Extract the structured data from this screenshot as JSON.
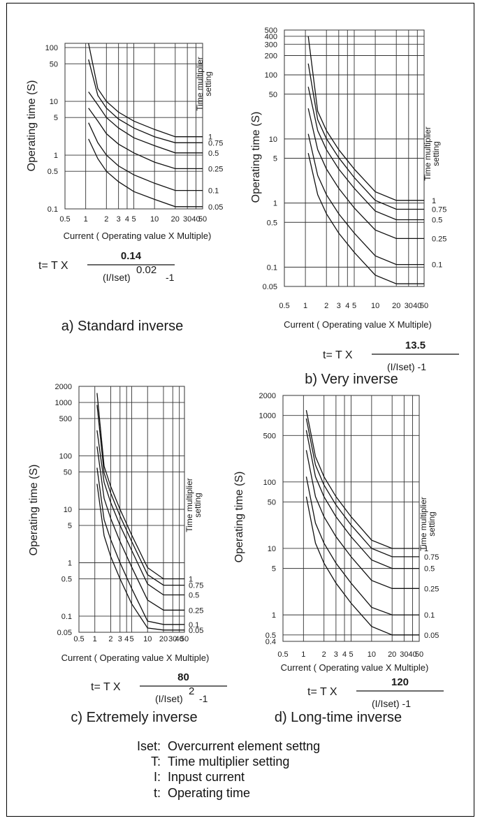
{
  "chart_data": [
    {
      "type": "line",
      "title": "a) Standard inverse",
      "xlabel": "Current ( Operating value X Multiple)",
      "ylabel": "Operating time (S)",
      "right_label": [
        "Time multiplier",
        "setting"
      ],
      "xlim": [
        0.5,
        50
      ],
      "ylim": [
        0.1,
        120
      ],
      "x_ticks": [
        0.5,
        1,
        2,
        3,
        4,
        5,
        10,
        20,
        30,
        40,
        50
      ],
      "x_tick_labels": [
        "0.5",
        "1",
        "2",
        "3",
        "4",
        "5",
        "10",
        "20",
        "30",
        "40",
        "50"
      ],
      "y_ticks": [
        0.1,
        0.5,
        1,
        5,
        10,
        50,
        100
      ],
      "y_tick_labels": [
        "0.1",
        "0.5",
        "1",
        "5",
        "10",
        "50",
        "100"
      ],
      "formula": {
        "prefix": "t= T X",
        "numerator": "0.14",
        "denominator": "(I/Iset)",
        "exponent": "0.02",
        "suffix": "-1"
      },
      "series": [
        {
          "name": "1",
          "x": [
            1.1,
            1.5,
            2,
            3,
            5,
            10,
            20,
            50
          ],
          "y": [
            120,
            17.2,
            10.0,
            6.3,
            4.3,
            3.0,
            2.2,
            2.2
          ]
        },
        {
          "name": "0.75",
          "x": [
            1.1,
            1.5,
            2,
            3,
            5,
            10,
            20,
            50
          ],
          "y": [
            60,
            12.9,
            7.5,
            4.7,
            3.2,
            2.2,
            1.7,
            1.7
          ]
        },
        {
          "name": "0.5",
          "x": [
            1.1,
            1.5,
            2,
            3,
            5,
            10,
            20,
            50
          ],
          "y": [
            15,
            8.6,
            5.0,
            3.2,
            2.1,
            1.5,
            1.1,
            1.1
          ]
        },
        {
          "name": "0.25",
          "x": [
            1.1,
            1.5,
            2,
            3,
            5,
            10,
            20,
            50
          ],
          "y": [
            7.5,
            4.3,
            2.5,
            1.6,
            1.1,
            0.74,
            0.56,
            0.56
          ]
        },
        {
          "name": "0.1",
          "x": [
            1.1,
            1.5,
            2,
            3,
            5,
            10,
            20,
            50
          ],
          "y": [
            4.0,
            1.7,
            1.0,
            0.63,
            0.43,
            0.3,
            0.22,
            0.22
          ]
        },
        {
          "name": "0.05",
          "x": [
            1.1,
            1.5,
            2,
            3,
            5,
            10,
            20,
            50
          ],
          "y": [
            2.0,
            0.86,
            0.5,
            0.32,
            0.21,
            0.15,
            0.11,
            0.11
          ]
        }
      ]
    },
    {
      "type": "line",
      "title": "b) Very inverse",
      "xlabel": "Current ( Operating value X Multiple)",
      "ylabel": "Operating time (S)",
      "right_label": [
        "Time multiplier",
        "setting"
      ],
      "xlim": [
        0.5,
        50
      ],
      "ylim": [
        0.05,
        500
      ],
      "x_ticks": [
        0.5,
        1,
        2,
        3,
        4,
        5,
        10,
        20,
        30,
        40,
        50
      ],
      "x_tick_labels": [
        "0.5",
        "1",
        "2",
        "3",
        "4",
        "5",
        "10",
        "20",
        "30",
        "40",
        "50"
      ],
      "y_ticks": [
        0.05,
        0.1,
        0.5,
        1,
        5,
        10,
        50,
        100,
        200,
        300,
        400,
        500
      ],
      "y_tick_labels": [
        "0.05",
        "0.1",
        "0.5",
        "1",
        "5",
        "10",
        "50",
        "100",
        "200",
        "300",
        "400",
        "500"
      ],
      "formula": {
        "prefix": "t= T X",
        "numerator": "13.5",
        "denominator": "(I/Iset) -1",
        "exponent": "",
        "suffix": ""
      },
      "series": [
        {
          "name": "1",
          "x": [
            1.1,
            1.5,
            2,
            3,
            5,
            10,
            20,
            50
          ],
          "y": [
            400,
            27,
            13.5,
            6.8,
            3.4,
            1.5,
            1.1,
            1.1
          ]
        },
        {
          "name": "0.75",
          "x": [
            1.1,
            1.5,
            2,
            3,
            5,
            10,
            20,
            50
          ],
          "y": [
            150,
            20,
            10.1,
            5.1,
            2.5,
            1.1,
            0.8,
            0.8
          ]
        },
        {
          "name": "0.5",
          "x": [
            1.1,
            1.5,
            2,
            3,
            5,
            10,
            20,
            50
          ],
          "y": [
            65,
            13.5,
            6.8,
            3.4,
            1.7,
            0.75,
            0.55,
            0.55
          ]
        },
        {
          "name": "0.25",
          "x": [
            1.1,
            1.5,
            2,
            3,
            5,
            10,
            20,
            50
          ],
          "y": [
            30,
            6.8,
            3.4,
            1.7,
            0.84,
            0.38,
            0.28,
            0.28
          ]
        },
        {
          "name": "0.1",
          "x": [
            1.1,
            1.5,
            2,
            3,
            5,
            10,
            20,
            50
          ],
          "y": [
            12,
            2.7,
            1.35,
            0.68,
            0.34,
            0.15,
            0.11,
            0.11
          ]
        },
        {
          "name": "",
          "x": [
            1.1,
            1.5,
            2,
            3,
            5,
            10,
            20,
            50
          ],
          "y": [
            6,
            1.35,
            0.68,
            0.34,
            0.17,
            0.075,
            0.055,
            0.055
          ]
        }
      ]
    },
    {
      "type": "line",
      "title": "c) Extremely inverse",
      "xlabel": "Current ( Operating value X Multiple)",
      "ylabel": "Operating time (S)",
      "right_label": [
        "Time multiplier",
        "setting"
      ],
      "xlim": [
        0.5,
        50
      ],
      "ylim": [
        0.05,
        2000
      ],
      "x_ticks": [
        0.5,
        1,
        2,
        3,
        4,
        5,
        10,
        20,
        30,
        40,
        50
      ],
      "x_tick_labels": [
        "0.5",
        "1",
        "2",
        "3",
        "4",
        "5",
        "10",
        "20",
        "30",
        "40",
        "50"
      ],
      "y_ticks": [
        0.05,
        0.1,
        0.5,
        1,
        5,
        10,
        50,
        100,
        500,
        1000,
        2000
      ],
      "y_tick_labels": [
        "0.05",
        "0.1",
        "0.5",
        "1",
        "5",
        "10",
        "50",
        "100",
        "500",
        "1000",
        "2000"
      ],
      "formula": {
        "prefix": "t= T X",
        "numerator": "80",
        "denominator": "(I/Iset)",
        "exponent": "2",
        "suffix": "-1"
      },
      "series": [
        {
          "name": "1",
          "x": [
            1.1,
            1.5,
            2,
            3,
            5,
            10,
            20,
            50
          ],
          "y": [
            1500,
            64,
            26.7,
            10,
            3.3,
            0.81,
            0.5,
            0.5
          ]
        },
        {
          "name": "0.75",
          "x": [
            1.1,
            1.5,
            2,
            3,
            5,
            10,
            20,
            50
          ],
          "y": [
            900,
            48,
            20,
            7.5,
            2.5,
            0.6,
            0.38,
            0.38
          ]
        },
        {
          "name": "0.5",
          "x": [
            1.1,
            1.5,
            2,
            3,
            5,
            10,
            20,
            50
          ],
          "y": [
            300,
            32,
            13.3,
            5,
            1.7,
            0.4,
            0.25,
            0.25
          ]
        },
        {
          "name": "0.25",
          "x": [
            1.1,
            1.5,
            2,
            3,
            5,
            10,
            20,
            50
          ],
          "y": [
            150,
            16,
            6.7,
            2.5,
            0.83,
            0.2,
            0.13,
            0.13
          ]
        },
        {
          "name": "0.1",
          "x": [
            1.1,
            1.5,
            2,
            3,
            5,
            10,
            20,
            50
          ],
          "y": [
            60,
            6.4,
            2.7,
            1.0,
            0.33,
            0.081,
            0.07,
            0.07
          ]
        },
        {
          "name": "0.05",
          "x": [
            1.1,
            1.5,
            2,
            3,
            5,
            10,
            20,
            50
          ],
          "y": [
            30,
            3.2,
            1.3,
            0.5,
            0.17,
            0.06,
            0.055,
            0.055
          ]
        }
      ]
    },
    {
      "type": "line",
      "title": "d) Long-time inverse",
      "xlabel": "Current ( Operating value X Multiple)",
      "ylabel": "Operating time (S)",
      "right_label": [
        "Time multiplier",
        "setting"
      ],
      "xlim": [
        0.5,
        50
      ],
      "ylim": [
        0.4,
        2000
      ],
      "x_ticks": [
        0.5,
        1,
        2,
        3,
        4,
        5,
        10,
        20,
        30,
        40,
        50
      ],
      "x_tick_labels": [
        "0.5",
        "1",
        "2",
        "3",
        "4",
        "5",
        "10",
        "20",
        "30",
        "40",
        "50"
      ],
      "y_ticks": [
        0.4,
        0.5,
        1,
        5,
        10,
        50,
        100,
        500,
        1000,
        2000
      ],
      "y_tick_labels": [
        "0.4",
        "0.5",
        "1",
        "5",
        "10",
        "50",
        "100",
        "500",
        "1000",
        "2000"
      ],
      "formula": {
        "prefix": "t= T X",
        "numerator": "120",
        "denominator": "(I/Iset) -1",
        "exponent": "",
        "suffix": ""
      },
      "series": [
        {
          "name": "1",
          "x": [
            1.1,
            1.5,
            2,
            3,
            5,
            10,
            20,
            50
          ],
          "y": [
            1200,
            240,
            120,
            60,
            30,
            13.3,
            10,
            10
          ]
        },
        {
          "name": "0.75",
          "x": [
            1.1,
            1.5,
            2,
            3,
            5,
            10,
            20,
            50
          ],
          "y": [
            900,
            180,
            90,
            45,
            22.5,
            10,
            7.5,
            7.5
          ]
        },
        {
          "name": "0.5",
          "x": [
            1.1,
            1.5,
            2,
            3,
            5,
            10,
            20,
            50
          ],
          "y": [
            600,
            120,
            60,
            30,
            15,
            6.7,
            5,
            5
          ]
        },
        {
          "name": "0.25",
          "x": [
            1.1,
            1.5,
            2,
            3,
            5,
            10,
            20,
            50
          ],
          "y": [
            300,
            60,
            30,
            15,
            7.5,
            3.3,
            2.5,
            2.5
          ]
        },
        {
          "name": "0.1",
          "x": [
            1.1,
            1.5,
            2,
            3,
            5,
            10,
            20,
            50
          ],
          "y": [
            120,
            24,
            12,
            6,
            3,
            1.3,
            1.0,
            1.0
          ]
        },
        {
          "name": "0.05",
          "x": [
            1.1,
            1.5,
            2,
            3,
            5,
            10,
            20,
            50
          ],
          "y": [
            60,
            12,
            6,
            3,
            1.5,
            0.67,
            0.5,
            0.5
          ]
        }
      ]
    }
  ],
  "legend": [
    {
      "key": "Iset:",
      "value": "Overcurrent element settng"
    },
    {
      "key": "T:",
      "value": "Time multiplier setting"
    },
    {
      "key": "I:",
      "value": "Inpust current"
    },
    {
      "key": "t:",
      "value": "Operating time"
    }
  ],
  "colors": {
    "title": "#3c6e68",
    "line": "#111111",
    "grid": "#333333"
  }
}
